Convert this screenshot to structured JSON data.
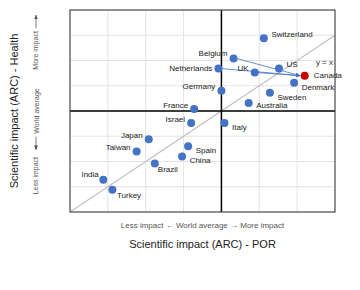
{
  "chart_data": {
    "type": "scatter",
    "xlabel": "Scientific impact (ARC) - POR",
    "ylabel": "Scientific impact (ARC) - Health",
    "xlabel_note": "Less impact    ←    World average    →    More impact",
    "ylabel_notes": [
      "More impact",
      "World average",
      "Less impact"
    ],
    "labels": [
      "Canada",
      "Switzerland",
      "US",
      "Belgium",
      "Netherlands",
      "UK",
      "Denmark",
      "Germany",
      "Sweden",
      "Australia",
      "France",
      "Italy",
      "Israel",
      "Japan",
      "Spain",
      "Taiwan",
      "China",
      "Brazil",
      "India",
      "Turkey"
    ],
    "x": [
      1.55,
      1.28,
      1.38,
      1.08,
      0.98,
      1.22,
      1.48,
      1.0,
      1.32,
      1.18,
      0.82,
      1.02,
      0.8,
      0.52,
      0.78,
      0.44,
      0.74,
      0.56,
      0.22,
      0.28
    ],
    "values": [
      1.35,
      1.72,
      1.42,
      1.52,
      1.42,
      1.38,
      1.28,
      1.2,
      1.18,
      1.08,
      1.02,
      0.88,
      0.88,
      0.72,
      0.65,
      0.6,
      0.55,
      0.48,
      0.32,
      0.22
    ],
    "colors": [
      "#cc0000",
      "#4472c4",
      "#4472c4",
      "#4472c4",
      "#4472c4",
      "#4472c4",
      "#4472c4",
      "#4472c4",
      "#4472c4",
      "#4472c4",
      "#4472c4",
      "#4472c4",
      "#4472c4",
      "#4472c4",
      "#4472c4",
      "#4472c4",
      "#4472c4",
      "#4472c4",
      "#4472c4",
      "#4472c4"
    ],
    "xlim": [
      0.0,
      1.75
    ],
    "ylim": [
      0.0,
      2.0
    ],
    "xticks": [
      0,
      0.25,
      0.5,
      0.75,
      1.0,
      1.25,
      1.5,
      1.75
    ],
    "yticks": [
      0,
      0.25,
      0.5,
      0.75,
      1.0,
      1.25,
      1.5,
      1.75,
      2.0
    ],
    "grid": true,
    "tick_labels": false,
    "annotations": [
      {
        "type": "line",
        "x": [
          0,
          1.75
        ],
        "values": [
          0,
          1.75
        ],
        "label": "y = x",
        "color": "#c0c0c0"
      },
      {
        "type": "vline",
        "x": 1.0,
        "color": "#000000"
      },
      {
        "type": "hline",
        "y": 1.0,
        "color": "#000000"
      },
      {
        "type": "arrow",
        "from": "Belgium",
        "to": "Canada",
        "color": "#4472c4"
      },
      {
        "type": "arrow",
        "from": "Netherlands",
        "to": "Canada",
        "color": "#4472c4"
      },
      {
        "type": "arrow",
        "from": "UK",
        "to": "Canada",
        "color": "#4472c4"
      }
    ]
  }
}
